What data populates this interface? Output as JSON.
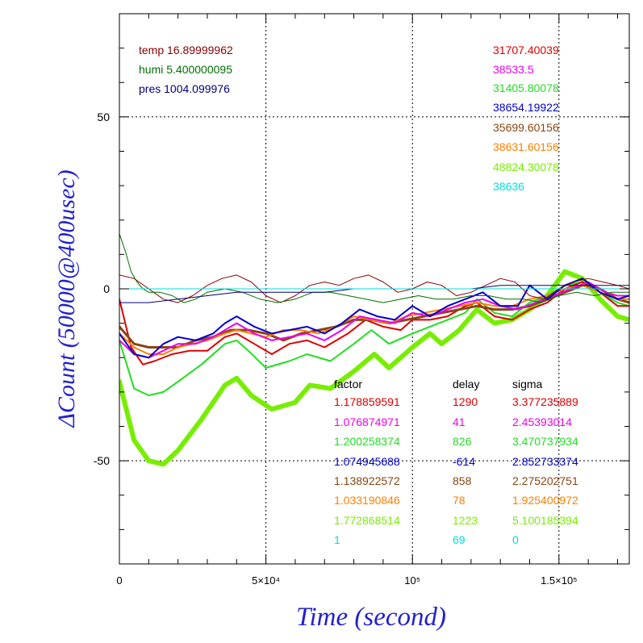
{
  "chart_data": {
    "type": "line",
    "title": "",
    "xlabel": "Time (second)",
    "ylabel": "ΔCount (50000@400usec)",
    "xlim": [
      0,
      174000
    ],
    "ylim": [
      -80,
      80
    ],
    "x_ticks": [
      {
        "value": 0,
        "label": "0"
      },
      {
        "value": 50000,
        "label": "5×10⁴"
      },
      {
        "value": 100000,
        "label": "10⁵"
      },
      {
        "value": 150000,
        "label": "1.5×10⁵"
      }
    ],
    "y_ticks": [
      {
        "value": -50,
        "label": "-50"
      },
      {
        "value": 0,
        "label": "0"
      },
      {
        "value": 50,
        "label": "50"
      }
    ],
    "grid": true,
    "env": [
      {
        "label": "temp 16.89999962",
        "color": "#8b0000"
      },
      {
        "label": "humi 5.400000095",
        "color": "#007000"
      },
      {
        "label": "pres 1004.099976",
        "color": "#000080"
      }
    ],
    "legend_counts": [
      {
        "label": "31707.40039",
        "color": "#dd0000"
      },
      {
        "label": "38533.5",
        "color": "#ee00ee"
      },
      {
        "label": "31405.80078",
        "color": "#22dd22"
      },
      {
        "label": "38654.19922",
        "color": "#0000cc"
      },
      {
        "label": "35699.60156",
        "color": "#8b4513"
      },
      {
        "label": "38631.60156",
        "color": "#ff8000"
      },
      {
        "label": "48824.30078",
        "color": "#77ee00"
      },
      {
        "label": "38636",
        "color": "#00dddd"
      }
    ],
    "table": {
      "headers": [
        "factor",
        "delay",
        "sigma"
      ],
      "rows": [
        {
          "factor": "1.178859591",
          "delay": "1290",
          "sigma": "3.377235889",
          "color": "#dd0000"
        },
        {
          "factor": "1.076874971",
          "delay": "41",
          "sigma": "2.45393014",
          "color": "#ee00ee"
        },
        {
          "factor": "1.200258374",
          "delay": "826",
          "sigma": "3.470737934",
          "color": "#22dd22"
        },
        {
          "factor": "1.074945688",
          "delay": "-614",
          "sigma": "2.852733374",
          "color": "#0000cc"
        },
        {
          "factor": "1.138922572",
          "delay": "858",
          "sigma": "2.275202751",
          "color": "#8b4513"
        },
        {
          "factor": "1.033190846",
          "delay": "78",
          "sigma": "1.925400972",
          "color": "#ff8000"
        },
        {
          "factor": "1.772868514",
          "delay": "1223",
          "sigma": "5.100185394",
          "color": "#77ee00"
        },
        {
          "factor": "1",
          "delay": "69",
          "sigma": "0",
          "color": "#00dddd"
        }
      ]
    },
    "series": [
      {
        "color": "#77ee00",
        "width": 6,
        "x": [
          0,
          5000,
          10000,
          15000,
          20000,
          28000,
          36000,
          40000,
          45000,
          52000,
          60000,
          65000,
          72000,
          80000,
          87000,
          92000,
          100000,
          106000,
          110000,
          116000,
          122000,
          128000,
          134000,
          140000,
          146000,
          152000,
          158000,
          164000,
          170000,
          174000
        ],
        "y": [
          -27,
          -44,
          -50,
          -51,
          -47,
          -38,
          -28,
          -26,
          -31,
          -35,
          -33,
          -28,
          -29,
          -24,
          -19,
          -23,
          -17,
          -13,
          -16,
          -12,
          -6,
          -10,
          -9,
          -6,
          -2,
          5,
          3,
          -3,
          -8,
          -9
        ]
      },
      {
        "color": "#22dd22",
        "width": 2,
        "x": [
          0,
          5000,
          10000,
          15000,
          20000,
          28000,
          36000,
          40000,
          44000,
          50000,
          58000,
          64000,
          72000,
          80000,
          86000,
          92000,
          100000,
          106000,
          112000,
          118000,
          122000,
          128000,
          134000,
          140000,
          146000,
          152000,
          158000,
          164000,
          170000,
          174000
        ],
        "y": [
          -15,
          -29,
          -31,
          -30,
          -27,
          -22,
          -16,
          -15,
          -18,
          -23,
          -21,
          -19,
          -21,
          -16,
          -12,
          -16,
          -13,
          -11,
          -9,
          -7,
          -3,
          -7,
          -8,
          -4,
          -2,
          1,
          2,
          -1,
          -4,
          -5
        ]
      },
      {
        "color": "#dd0000",
        "width": 2,
        "x": [
          0,
          4000,
          8000,
          12000,
          18000,
          24000,
          30000,
          36000,
          40000,
          46000,
          52000,
          58000,
          64000,
          70000,
          78000,
          84000,
          90000,
          96000,
          100000,
          106000,
          112000,
          118000,
          122000,
          128000,
          134000,
          140000,
          146000,
          152000,
          158000,
          164000,
          170000,
          174000
        ],
        "y": [
          -3,
          -17,
          -22,
          -21,
          -19,
          -18,
          -18,
          -14,
          -13,
          -16,
          -19,
          -16,
          -15,
          -17,
          -13,
          -9,
          -11,
          -12,
          -9,
          -9,
          -8,
          -5,
          -4,
          -8,
          -9,
          -6,
          -4,
          0,
          2,
          -1,
          -5,
          -5
        ]
      },
      {
        "color": "#8b4513",
        "width": 3,
        "x": [
          0,
          5000,
          10000,
          15000,
          20000,
          26000,
          32000,
          38000,
          44000,
          50000,
          56000,
          62000,
          68000,
          74000,
          80000,
          86000,
          92000,
          98000,
          104000,
          110000,
          116000,
          122000,
          128000,
          134000,
          140000,
          146000,
          152000,
          158000,
          164000,
          170000,
          174000
        ],
        "y": [
          -11,
          -16,
          -17,
          -17,
          -17,
          -15,
          -14,
          -12,
          -12,
          -13,
          -15,
          -13,
          -12,
          -11,
          -9,
          -9,
          -10,
          -9,
          -8,
          -7,
          -6,
          -5,
          -6,
          -6,
          -5,
          -3,
          -1,
          1,
          0,
          -3,
          -4
        ]
      },
      {
        "color": "#ff8000",
        "width": 2,
        "x": [
          0,
          5000,
          10000,
          15000,
          20000,
          25000,
          30000,
          36000,
          40000,
          45000,
          50000,
          56000,
          62000,
          68000,
          74000,
          80000,
          86000,
          92000,
          98000,
          104000,
          110000,
          116000,
          122000,
          128000,
          134000,
          140000,
          146000,
          152000,
          158000,
          164000,
          170000,
          174000
        ],
        "y": [
          -13,
          -17,
          -19,
          -19,
          -17,
          -16,
          -15,
          -13,
          -12,
          -13,
          -14,
          -12,
          -12,
          -13,
          -11,
          -8,
          -9,
          -10,
          -8,
          -7,
          -6,
          -5,
          -4,
          -5,
          -5,
          -3,
          -2,
          0,
          1,
          -1,
          -3,
          -3
        ]
      },
      {
        "color": "#ee00ee",
        "width": 2,
        "x": [
          0,
          5000,
          10000,
          15000,
          20000,
          26000,
          32000,
          36000,
          40000,
          46000,
          52000,
          58000,
          64000,
          70000,
          76000,
          82000,
          88000,
          94000,
          100000,
          106000,
          112000,
          118000,
          124000,
          130000,
          136000,
          142000,
          148000,
          154000,
          160000,
          166000,
          170000,
          174000
        ],
        "y": [
          -15,
          -19,
          -20,
          -18,
          -16,
          -16,
          -14,
          -12,
          -10,
          -13,
          -15,
          -14,
          -13,
          -15,
          -12,
          -8,
          -9,
          -10,
          -7,
          -8,
          -6,
          -4,
          -3,
          -5,
          -6,
          -4,
          -2,
          0,
          2,
          -1,
          -2,
          -2
        ]
      },
      {
        "color": "#0000cc",
        "width": 2,
        "x": [
          0,
          5000,
          10000,
          15000,
          20000,
          26000,
          32000,
          36000,
          40000,
          46000,
          52000,
          58000,
          64000,
          70000,
          76000,
          82000,
          88000,
          94000,
          100000,
          106000,
          112000,
          118000,
          124000,
          130000,
          136000,
          140000,
          146000,
          152000,
          158000,
          164000,
          170000,
          174000
        ],
        "y": [
          -13,
          -19,
          -20,
          -16,
          -14,
          -15,
          -13,
          -10,
          -8,
          -11,
          -13,
          -12,
          -11,
          -13,
          -10,
          -6,
          -8,
          -9,
          -5,
          -8,
          -5,
          -3,
          -1,
          -5,
          -5,
          1,
          -3,
          1,
          3,
          -1,
          -3,
          -2
        ]
      },
      {
        "color": "#8b0000",
        "width": 1,
        "x": [
          0,
          5000,
          10000,
          15000,
          20000,
          25000,
          30000,
          35000,
          40000,
          45000,
          50000,
          55000,
          60000,
          65000,
          70000,
          75000,
          80000,
          85000,
          90000,
          95000,
          100000,
          105000,
          110000,
          115000,
          120000,
          125000,
          130000,
          135000,
          140000,
          145000,
          150000,
          155000,
          160000,
          165000,
          170000,
          174000
        ],
        "y": [
          4,
          3,
          0,
          -3,
          -4,
          -2,
          1,
          3,
          4,
          2,
          -2,
          -4,
          -2,
          1,
          2,
          1,
          3,
          4,
          2,
          -1,
          0,
          2,
          1,
          -2,
          -1,
          1,
          3,
          2,
          -2,
          -3,
          0,
          2,
          3,
          2,
          1,
          0
        ]
      },
      {
        "color": "#007000",
        "width": 1,
        "x": [
          0,
          2000,
          4000,
          6000,
          8000,
          10000,
          14000,
          18000,
          22000,
          26000,
          30000,
          36000,
          42000,
          48000,
          54000,
          60000,
          66000,
          72000,
          78000,
          84000,
          90000,
          96000,
          102000,
          108000,
          114000,
          120000,
          126000,
          132000,
          138000,
          144000,
          150000,
          156000,
          162000,
          168000,
          174000
        ],
        "y": [
          16,
          11,
          5,
          2,
          0,
          -1,
          -1,
          -2,
          -4,
          -3,
          -1,
          0,
          -1,
          -3,
          -4,
          -3,
          -1,
          -1,
          -2,
          -3,
          -4,
          -3,
          -2,
          -3,
          -3,
          -2,
          -2,
          -3,
          -3,
          -4,
          -2,
          -1,
          -2,
          -1,
          -1
        ]
      },
      {
        "color": "#000080",
        "width": 1,
        "x": [
          0,
          10000,
          20000,
          30000,
          40000,
          50000,
          60000,
          70000,
          80000,
          90000,
          100000,
          110000,
          120000,
          130000,
          140000,
          150000,
          160000,
          174000
        ],
        "y": [
          -4,
          -4,
          -3,
          -2,
          -1,
          -1,
          -1,
          -1,
          0,
          0,
          0,
          0,
          0,
          1,
          1,
          1,
          1,
          1
        ]
      },
      {
        "color": "#00dddd",
        "width": 1,
        "x": [
          0,
          174000
        ],
        "y": [
          0,
          0
        ]
      }
    ]
  }
}
